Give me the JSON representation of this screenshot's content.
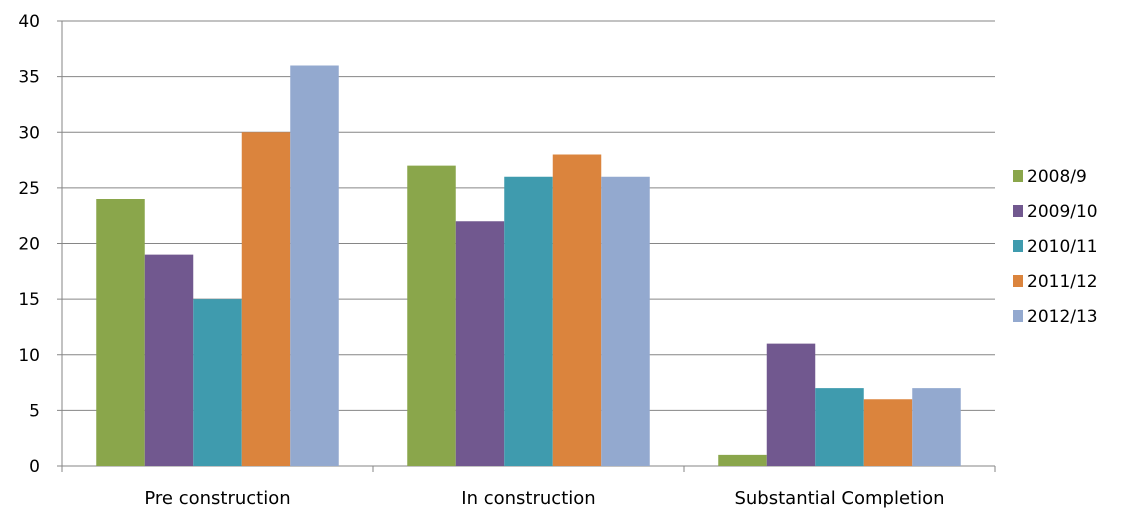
{
  "chart_data": {
    "type": "bar",
    "title": "",
    "xlabel": "",
    "ylabel": "",
    "categories": [
      "Pre construction",
      "In construction",
      "Substantial Completion"
    ],
    "series": [
      {
        "name": "2008/9",
        "values": [
          24,
          27,
          1
        ],
        "color": "#8aa64b"
      },
      {
        "name": "2009/10",
        "values": [
          19,
          22,
          11
        ],
        "color": "#71588f"
      },
      {
        "name": "2010/11",
        "values": [
          15,
          26,
          7
        ],
        "color": "#3f9bae"
      },
      {
        "name": "2011/12",
        "values": [
          30,
          28,
          6
        ],
        "color": "#db843d"
      },
      {
        "name": "2012/13",
        "values": [
          36,
          26,
          7
        ],
        "color": "#93a9cf"
      }
    ],
    "ylim": [
      0,
      40
    ],
    "yticks": [
      "0",
      "5",
      "10",
      "15",
      "20",
      "25",
      "30",
      "35",
      "40"
    ],
    "grid": true,
    "legend_position": "right",
    "gridline_color": "#868686"
  }
}
